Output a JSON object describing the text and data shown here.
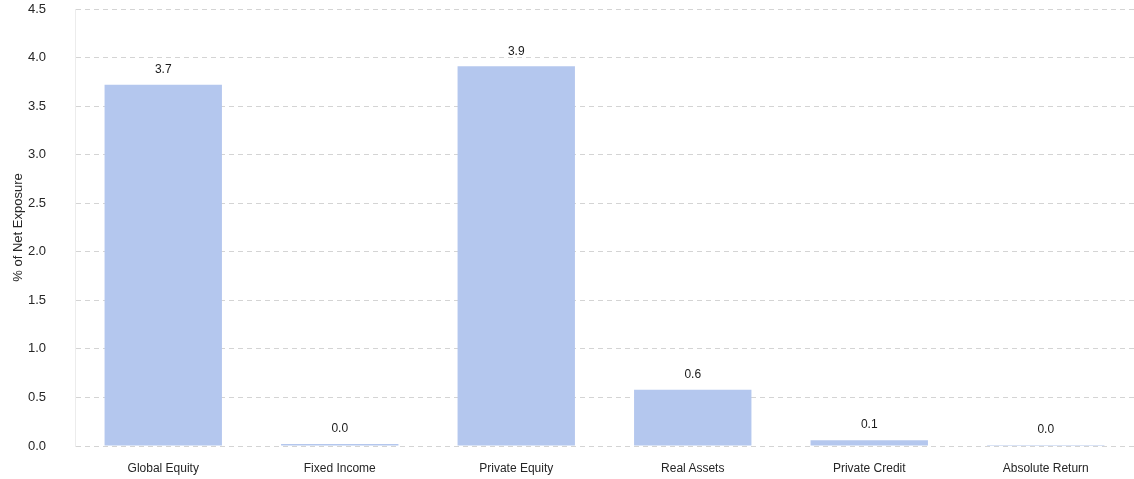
{
  "chart_data": {
    "type": "bar",
    "ylabel": "% of Net Exposure",
    "categories": [
      "Global Equity",
      "Fixed Income",
      "Private Equity",
      "Real Assets",
      "Private Credit",
      "Absolute Return"
    ],
    "values": [
      3.72,
      0.02,
      3.91,
      0.58,
      0.06,
      0.01
    ],
    "value_labels": [
      "3.7",
      "0.0",
      "3.9",
      "0.6",
      "0.1",
      "0.0"
    ],
    "color": "#b4c7ee",
    "ylim": [
      0,
      4.5
    ],
    "yticks": [
      {
        "value": 0,
        "label": "0.0"
      },
      {
        "value": 0.5,
        "label": "0.5"
      },
      {
        "value": 1,
        "label": "1.0"
      },
      {
        "value": 1.5,
        "label": "1.5"
      },
      {
        "value": 2,
        "label": "2.0"
      },
      {
        "value": 2.5,
        "label": "2.5"
      },
      {
        "value": 3,
        "label": "3.0"
      },
      {
        "value": 3.5,
        "label": "3.5"
      },
      {
        "value": 4,
        "label": "4.0"
      },
      {
        "value": 4.5,
        "label": "4.5"
      }
    ],
    "grid": "y"
  }
}
